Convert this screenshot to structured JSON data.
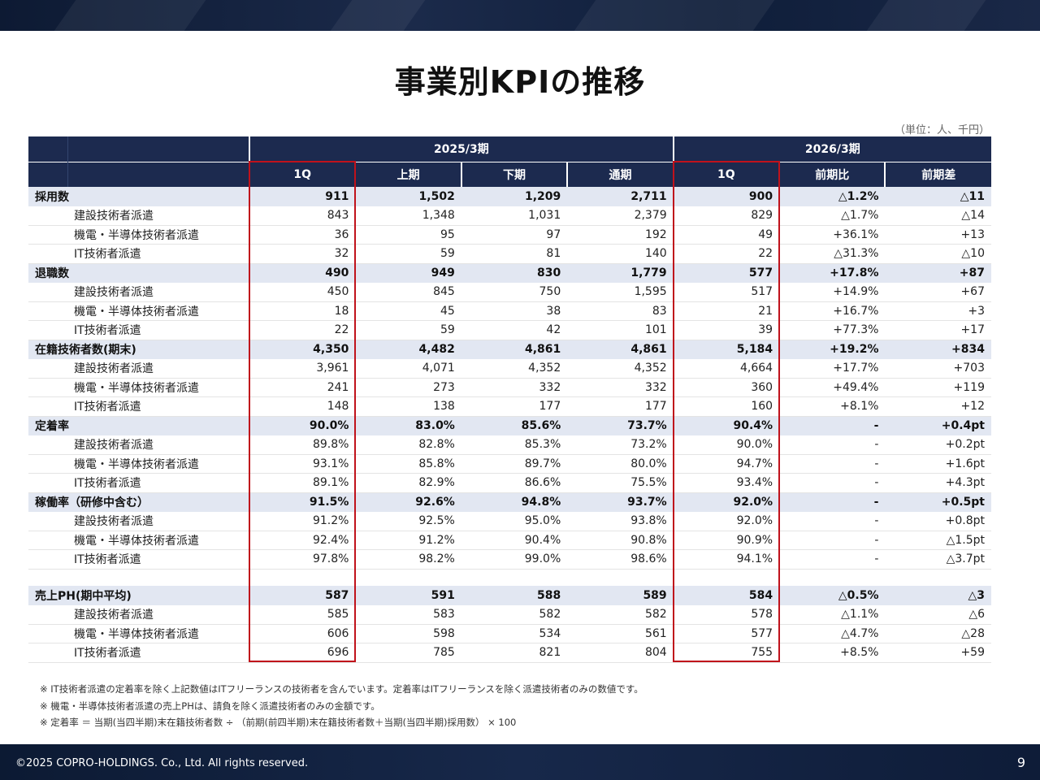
{
  "title": "事業別KPIの推移",
  "unit_note": "（単位：人、千円）",
  "header": {
    "fy2025": "2025/3期",
    "fy2026": "2026/3期",
    "cols": [
      "1Q",
      "上期",
      "下期",
      "通期",
      "1Q",
      "前期比",
      "前期差"
    ]
  },
  "sections": [
    {
      "main": {
        "label": "採用数",
        "values": [
          "911",
          "1,502",
          "1,209",
          "2,711",
          "900",
          "△1.2%",
          "△11"
        ]
      },
      "subs": [
        {
          "label": "建設技術者派遣",
          "values": [
            "843",
            "1,348",
            "1,031",
            "2,379",
            "829",
            "△1.7%",
            "△14"
          ]
        },
        {
          "label": "機電・半導体技術者派遣",
          "values": [
            "36",
            "95",
            "97",
            "192",
            "49",
            "+36.1%",
            "+13"
          ]
        },
        {
          "label": "IT技術者派遣",
          "values": [
            "32",
            "59",
            "81",
            "140",
            "22",
            "△31.3%",
            "△10"
          ]
        }
      ]
    },
    {
      "main": {
        "label": "退職数",
        "values": [
          "490",
          "949",
          "830",
          "1,779",
          "577",
          "+17.8%",
          "+87"
        ]
      },
      "subs": [
        {
          "label": "建設技術者派遣",
          "values": [
            "450",
            "845",
            "750",
            "1,595",
            "517",
            "+14.9%",
            "+67"
          ]
        },
        {
          "label": "機電・半導体技術者派遣",
          "values": [
            "18",
            "45",
            "38",
            "83",
            "21",
            "+16.7%",
            "+3"
          ]
        },
        {
          "label": "IT技術者派遣",
          "values": [
            "22",
            "59",
            "42",
            "101",
            "39",
            "+77.3%",
            "+17"
          ]
        }
      ]
    },
    {
      "main": {
        "label": "在籍技術者数(期末)",
        "values": [
          "4,350",
          "4,482",
          "4,861",
          "4,861",
          "5,184",
          "+19.2%",
          "+834"
        ]
      },
      "subs": [
        {
          "label": "建設技術者派遣",
          "values": [
            "3,961",
            "4,071",
            "4,352",
            "4,352",
            "4,664",
            "+17.7%",
            "+703"
          ]
        },
        {
          "label": "機電・半導体技術者派遣",
          "values": [
            "241",
            "273",
            "332",
            "332",
            "360",
            "+49.4%",
            "+119"
          ]
        },
        {
          "label": "IT技術者派遣",
          "values": [
            "148",
            "138",
            "177",
            "177",
            "160",
            "+8.1%",
            "+12"
          ]
        }
      ]
    },
    {
      "main": {
        "label": "定着率",
        "values": [
          "90.0%",
          "83.0%",
          "85.6%",
          "73.7%",
          "90.4%",
          "-",
          "+0.4pt"
        ]
      },
      "subs": [
        {
          "label": "建設技術者派遣",
          "values": [
            "89.8%",
            "82.8%",
            "85.3%",
            "73.2%",
            "90.0%",
            "-",
            "+0.2pt"
          ]
        },
        {
          "label": "機電・半導体技術者派遣",
          "values": [
            "93.1%",
            "85.8%",
            "89.7%",
            "80.0%",
            "94.7%",
            "-",
            "+1.6pt"
          ]
        },
        {
          "label": "IT技術者派遣",
          "values": [
            "89.1%",
            "82.9%",
            "86.6%",
            "75.5%",
            "93.4%",
            "-",
            "+4.3pt"
          ]
        }
      ]
    },
    {
      "main": {
        "label": "稼働率（研修中含む）",
        "values": [
          "91.5%",
          "92.6%",
          "94.8%",
          "93.7%",
          "92.0%",
          "-",
          "+0.5pt"
        ]
      },
      "subs": [
        {
          "label": "建設技術者派遣",
          "values": [
            "91.2%",
            "92.5%",
            "95.0%",
            "93.8%",
            "92.0%",
            "-",
            "+0.8pt"
          ]
        },
        {
          "label": "機電・半導体技術者派遣",
          "values": [
            "92.4%",
            "91.2%",
            "90.4%",
            "90.8%",
            "90.9%",
            "-",
            "△1.5pt"
          ]
        },
        {
          "label": "IT技術者派遣",
          "values": [
            "97.8%",
            "98.2%",
            "99.0%",
            "98.6%",
            "94.1%",
            "-",
            "△3.7pt"
          ]
        }
      ]
    }
  ],
  "sales": {
    "main": {
      "label": "売上PH(期中平均)",
      "values": [
        "587",
        "591",
        "588",
        "589",
        "584",
        "△0.5%",
        "△3"
      ]
    },
    "subs": [
      {
        "label": "建設技術者派遣",
        "values": [
          "585",
          "583",
          "582",
          "582",
          "578",
          "△1.1%",
          "△6"
        ]
      },
      {
        "label": "機電・半導体技術者派遣",
        "values": [
          "606",
          "598",
          "534",
          "561",
          "577",
          "△4.7%",
          "△28"
        ]
      },
      {
        "label": "IT技術者派遣",
        "values": [
          "696",
          "785",
          "821",
          "804",
          "755",
          "+8.5%",
          "+59"
        ]
      }
    ]
  },
  "notes": [
    "※ IT技術者派遣の定着率を除く上記数値はITフリーランスの技術者を含んでいます。定着率はITフリーランスを除く派遣技術者のみの数値です。",
    "※ 機電・半導体技術者派遣の売上PHは、請負を除く派遣技術者のみの金額です。",
    "※ 定着率 ＝ 当期(当四半期)末在籍技術者数 ÷ （前期(前四半期)末在籍技術者数＋当期(当四半期)採用数） × 100"
  ],
  "footer": {
    "copyright": "©2025 COPRO-HOLDINGS. Co., Ltd. All rights reserved.",
    "page": "9"
  },
  "colors": {
    "header_navy": "#1c2a4f",
    "main_row_bg": "#e2e7f2",
    "highlight_red": "#c0121b"
  }
}
